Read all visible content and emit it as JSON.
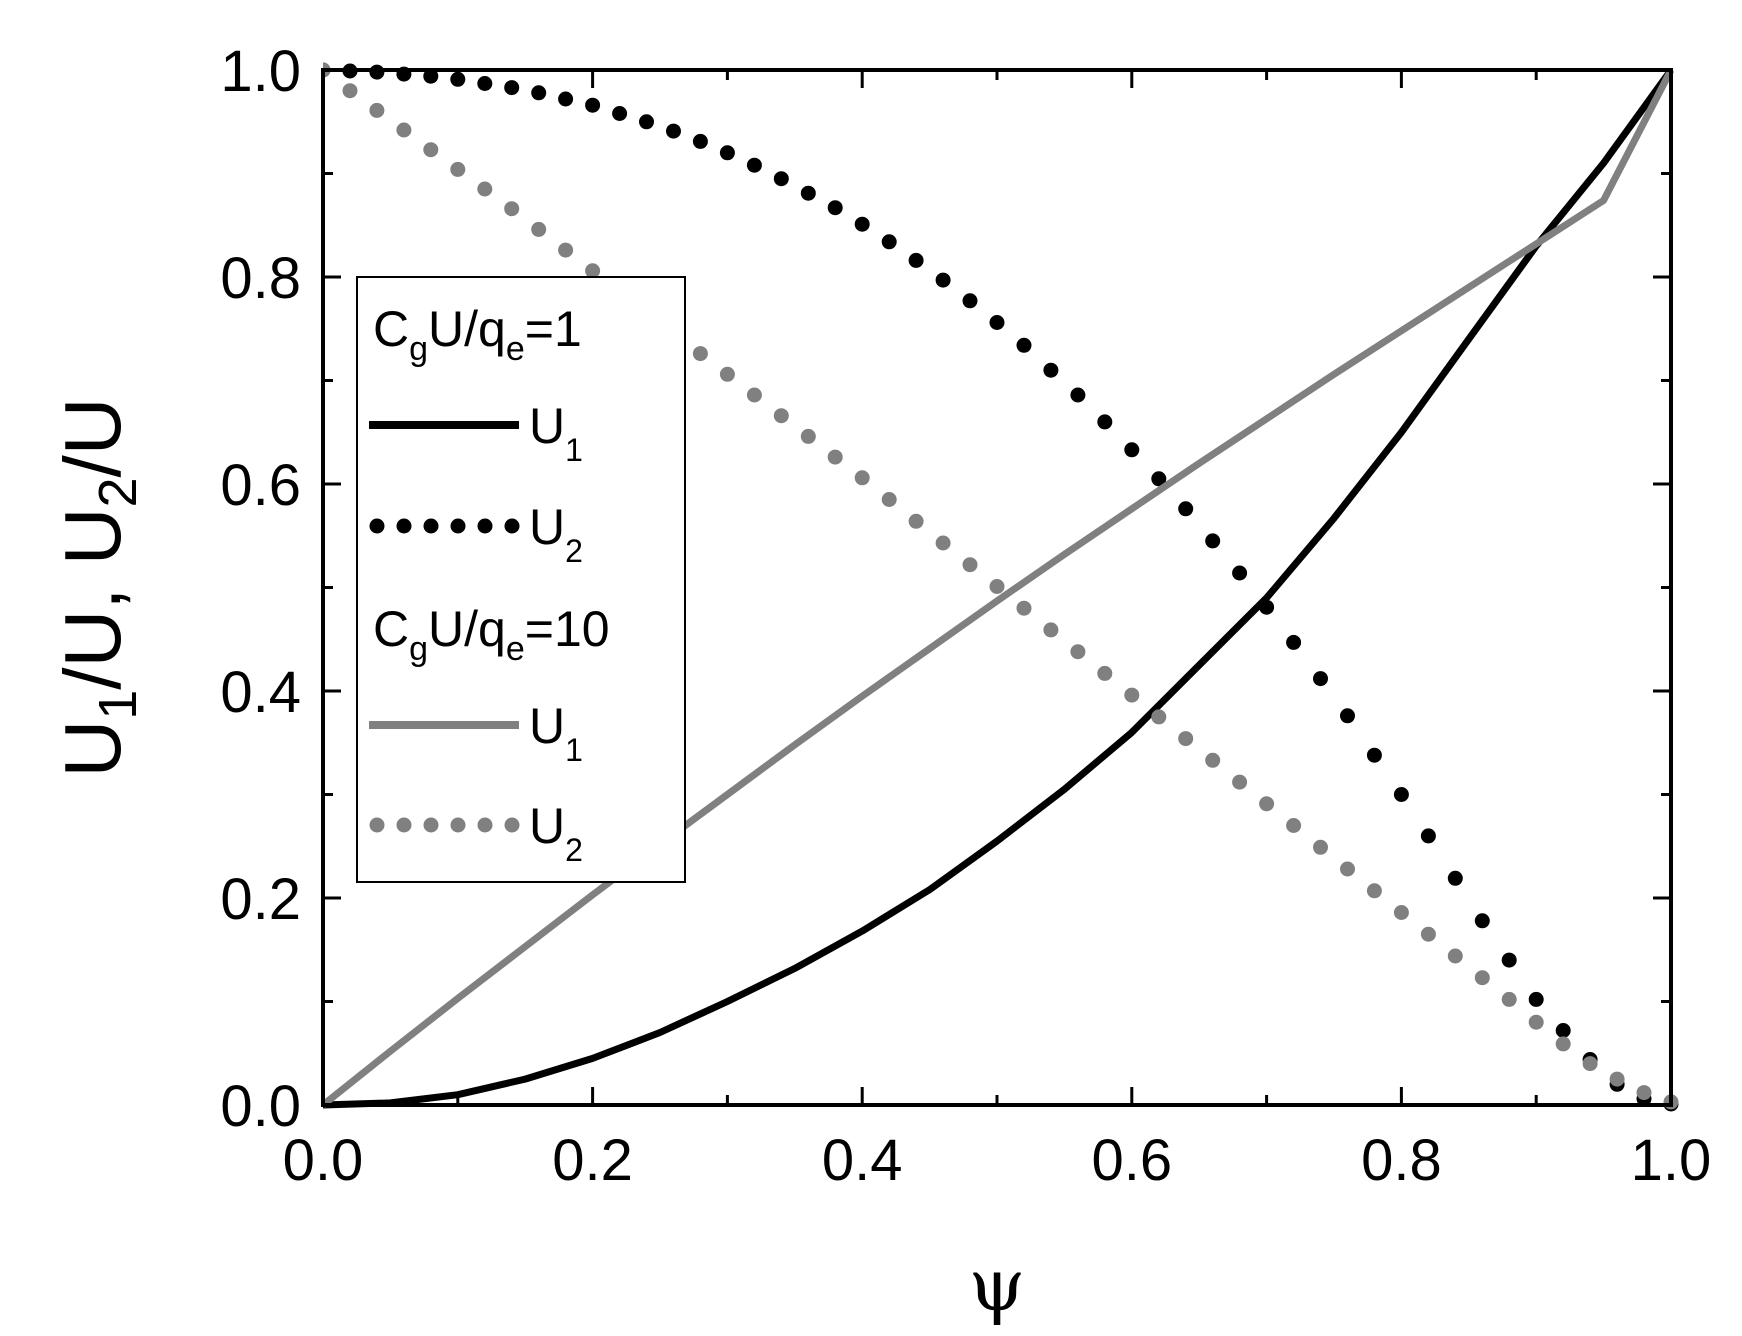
{
  "chart_data": {
    "type": "line",
    "xlabel": "ψ",
    "ylabel": {
      "parts": [
        {
          "text": "U",
          "sub": false
        },
        {
          "text": "1",
          "sub": true
        },
        {
          "text": "/U, U",
          "sub": false
        },
        {
          "text": "2",
          "sub": true
        },
        {
          "text": "/U",
          "sub": false
        }
      ]
    },
    "xlim": [
      0.0,
      1.0
    ],
    "ylim": [
      0.0,
      1.0
    ],
    "xticks": [
      "0.0",
      "0.2",
      "0.4",
      "0.6",
      "0.8",
      "1.0"
    ],
    "yticks": [
      "0.0",
      "0.2",
      "0.4",
      "0.6",
      "0.8",
      "1.0"
    ],
    "grid": false,
    "legend": {
      "placement": "left",
      "groups": [
        {
          "header": {
            "main": "C",
            "sub1": "g",
            "mid": "U/q",
            "sub2": "e",
            "tail": "=1"
          },
          "entries": [
            {
              "label": "U",
              "sub": "1",
              "series": 0
            },
            {
              "label": "U",
              "sub": "2",
              "series": 1
            }
          ]
        },
        {
          "header": {
            "main": "C",
            "sub1": "g",
            "mid": "U/q",
            "sub2": "e",
            "tail": "=10"
          },
          "entries": [
            {
              "label": "U",
              "sub": "1",
              "series": 2
            },
            {
              "label": "U",
              "sub": "2",
              "series": 3
            }
          ]
        }
      ]
    },
    "series": [
      {
        "style": "solid",
        "color": "#000000",
        "x": [
          0.0,
          0.05,
          0.1,
          0.15,
          0.2,
          0.25,
          0.3,
          0.35,
          0.4,
          0.45,
          0.5,
          0.55,
          0.6,
          0.65,
          0.7,
          0.75,
          0.8,
          0.85,
          0.9,
          0.95,
          1.0
        ],
        "y": [
          0.0,
          0.002,
          0.01,
          0.025,
          0.045,
          0.07,
          0.1,
          0.132,
          0.168,
          0.208,
          0.255,
          0.305,
          0.36,
          0.425,
          0.49,
          0.567,
          0.65,
          0.74,
          0.83,
          0.91,
          1.0
        ]
      },
      {
        "style": "dotted",
        "color": "#000000",
        "x": [
          0.0,
          0.02,
          0.04,
          0.06,
          0.08,
          0.1,
          0.12,
          0.14,
          0.16,
          0.18,
          0.2,
          0.22,
          0.24,
          0.26,
          0.28,
          0.3,
          0.32,
          0.34,
          0.36,
          0.38,
          0.4,
          0.42,
          0.44,
          0.46,
          0.48,
          0.5,
          0.52,
          0.54,
          0.56,
          0.58,
          0.6,
          0.62,
          0.64,
          0.66,
          0.68,
          0.7,
          0.72,
          0.74,
          0.76,
          0.78,
          0.8,
          0.82,
          0.84,
          0.86,
          0.88,
          0.9,
          0.92,
          0.94,
          0.96,
          0.98,
          1.0
        ],
        "y": [
          1.0,
          0.999,
          0.998,
          0.996,
          0.994,
          0.991,
          0.987,
          0.983,
          0.978,
          0.972,
          0.966,
          0.958,
          0.95,
          0.941,
          0.931,
          0.92,
          0.908,
          0.895,
          0.881,
          0.867,
          0.851,
          0.834,
          0.816,
          0.797,
          0.777,
          0.756,
          0.734,
          0.71,
          0.686,
          0.66,
          0.633,
          0.605,
          0.576,
          0.545,
          0.514,
          0.481,
          0.447,
          0.412,
          0.376,
          0.338,
          0.3,
          0.26,
          0.219,
          0.178,
          0.14,
          0.102,
          0.072,
          0.044,
          0.02,
          0.006,
          0.001
        ]
      },
      {
        "style": "solid",
        "color": "#808080",
        "x": [
          0.0,
          0.05,
          0.1,
          0.15,
          0.2,
          0.25,
          0.3,
          0.35,
          0.4,
          0.45,
          0.5,
          0.55,
          0.6,
          0.65,
          0.7,
          0.75,
          0.8,
          0.85,
          0.9,
          0.95,
          1.0
        ],
        "y": [
          0.0,
          0.052,
          0.103,
          0.153,
          0.203,
          0.252,
          0.3,
          0.348,
          0.395,
          0.441,
          0.487,
          0.532,
          0.576,
          0.62,
          0.663,
          0.706,
          0.748,
          0.79,
          0.832,
          0.874,
          1.0
        ]
      },
      {
        "style": "dotted",
        "color": "#808080",
        "x": [
          0.0,
          0.02,
          0.04,
          0.06,
          0.08,
          0.1,
          0.12,
          0.14,
          0.16,
          0.18,
          0.2,
          0.22,
          0.24,
          0.26,
          0.28,
          0.3,
          0.32,
          0.34,
          0.36,
          0.38,
          0.4,
          0.42,
          0.44,
          0.46,
          0.48,
          0.5,
          0.52,
          0.54,
          0.56,
          0.58,
          0.6,
          0.62,
          0.64,
          0.66,
          0.68,
          0.7,
          0.72,
          0.74,
          0.76,
          0.78,
          0.8,
          0.82,
          0.84,
          0.86,
          0.88,
          0.9,
          0.92,
          0.94,
          0.96,
          0.98,
          1.0
        ],
        "y": [
          1.0,
          0.98,
          0.961,
          0.942,
          0.923,
          0.904,
          0.885,
          0.866,
          0.846,
          0.826,
          0.806,
          0.786,
          0.766,
          0.746,
          0.726,
          0.706,
          0.686,
          0.666,
          0.646,
          0.626,
          0.606,
          0.585,
          0.564,
          0.543,
          0.522,
          0.501,
          0.48,
          0.459,
          0.438,
          0.417,
          0.396,
          0.375,
          0.354,
          0.333,
          0.312,
          0.291,
          0.27,
          0.249,
          0.228,
          0.207,
          0.186,
          0.165,
          0.144,
          0.123,
          0.102,
          0.08,
          0.059,
          0.04,
          0.025,
          0.012,
          0.003
        ]
      }
    ]
  }
}
